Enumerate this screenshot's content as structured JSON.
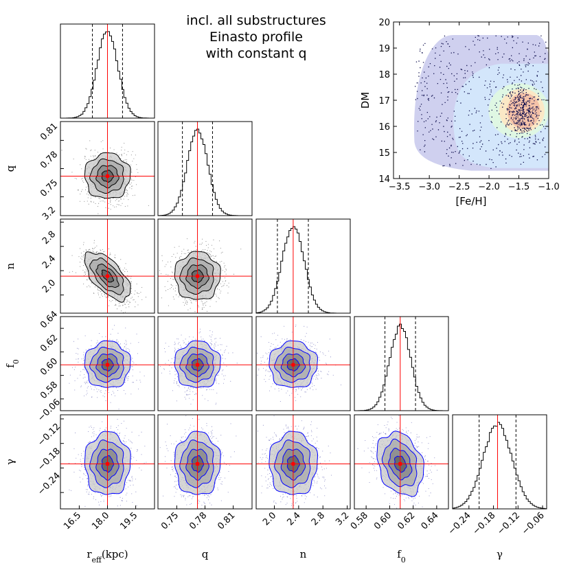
{
  "chart_data": {
    "type": "corner",
    "title_lines": [
      "incl. all substructures",
      "Einasto profile",
      "with constant q"
    ],
    "parameters": [
      {
        "key": "reff",
        "label": "r",
        "sub": "eff",
        "unit": "(kpc)",
        "range": [
          15.5,
          20.5
        ],
        "ticks": [
          16.5,
          18.0,
          19.5
        ],
        "tick_labels": [
          "16.5",
          "18.0",
          "19.5"
        ],
        "best": 18.0,
        "sigma": 0.55,
        "quantiles": [
          17.2,
          18.0,
          18.8
        ]
      },
      {
        "key": "q",
        "label": "q",
        "sub": "",
        "unit": "",
        "range": [
          0.73,
          0.83
        ],
        "ticks": [
          0.75,
          0.78,
          0.81
        ],
        "tick_labels": [
          "0.75",
          "0.78",
          "0.81"
        ],
        "best": 0.772,
        "sigma": 0.011,
        "quantiles": [
          0.756,
          0.772,
          0.788
        ]
      },
      {
        "key": "n",
        "label": "n",
        "sub": "",
        "unit": "",
        "range": [
          1.7,
          3.25
        ],
        "ticks": [
          2.0,
          2.4,
          2.8,
          3.2
        ],
        "tick_labels": [
          "2.0",
          "2.4",
          "2.8",
          "3.2"
        ],
        "best": 2.31,
        "sigma": 0.18,
        "quantiles": [
          2.05,
          2.31,
          2.56
        ]
      },
      {
        "key": "f0",
        "label": "f",
        "sub": "0",
        "unit": "",
        "range": [
          0.57,
          0.65
        ],
        "ticks": [
          0.58,
          0.6,
          0.62,
          0.64
        ],
        "tick_labels": [
          "0.58",
          "0.60",
          "0.62",
          "0.64"
        ],
        "best": 0.609,
        "sigma": 0.009,
        "quantiles": [
          0.596,
          0.609,
          0.622
        ]
      },
      {
        "key": "gamma",
        "label": "γ",
        "sub": "",
        "unit": "",
        "range": [
          -0.28,
          -0.05
        ],
        "ticks": [
          -0.24,
          -0.18,
          -0.12,
          -0.06
        ],
        "tick_labels": [
          "−0.24",
          "−0.18",
          "−0.12",
          "−0.06"
        ],
        "best": -0.17,
        "sigma": 0.035,
        "quantiles": [
          -0.215,
          -0.17,
          -0.125
        ]
      }
    ],
    "correlations": {
      "reff-n": -0.62,
      "f0-gamma": -0.25
    },
    "contour_colors": {
      "upper_rows": "#000000",
      "lower_rows": "#0000ff",
      "truth_lines": "#ff0000",
      "scatter_upper": "#000000",
      "scatter_lower": "#1b1b8f"
    },
    "inset": {
      "type": "scatter",
      "xlabel": "[Fe/H]",
      "ylabel": "DM",
      "xlim": [
        -3.6,
        -1.0
      ],
      "ylim": [
        14,
        20
      ],
      "xticks": [
        -3.5,
        -3.0,
        -2.5,
        -2.0,
        -1.5,
        -1.0
      ],
      "xtick_labels": [
        "−3.5",
        "−3.0",
        "−2.5",
        "−2.0",
        "−1.5",
        "−1.0"
      ],
      "yticks": [
        14,
        15,
        16,
        17,
        18,
        19,
        20
      ],
      "ytick_labels": [
        "14",
        "15",
        "16",
        "17",
        "18",
        "19",
        "20"
      ],
      "density_peak": {
        "x": -1.45,
        "y": 16.6
      },
      "density_colors": [
        "#cfd0ef",
        "#d3e6fb",
        "#dff7e3",
        "#fbe8c6",
        "#f4c2a8"
      ],
      "point_color": "#0a0a4a"
    }
  }
}
